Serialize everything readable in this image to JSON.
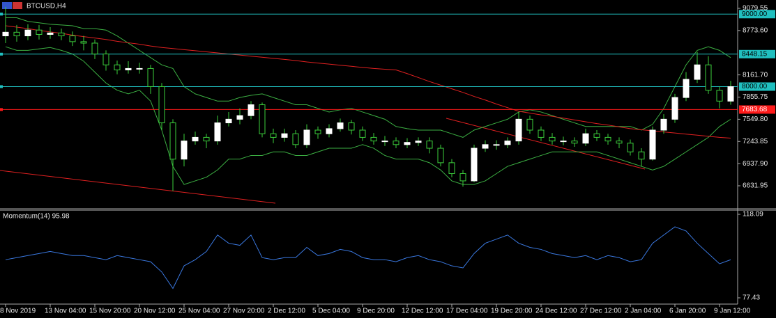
{
  "chart_data": [
    {
      "type": "candlestick",
      "title": "BTCUSD,H4",
      "categories": [
        "8 Nov 2019",
        null,
        null,
        null,
        "13 Nov 04:00",
        null,
        null,
        null,
        "15 Nov 20:00",
        null,
        null,
        null,
        "20 Nov 12:00",
        null,
        null,
        null,
        "25 Nov 04:00",
        null,
        null,
        null,
        "27 Nov 20:00",
        null,
        null,
        null,
        "2 Dec 12:00",
        null,
        null,
        null,
        "5 Dec 04:00",
        null,
        null,
        null,
        "9 Dec 20:00",
        null,
        null,
        null,
        "12 Dec 12:00",
        null,
        null,
        null,
        "17 Dec 04:00",
        null,
        null,
        null,
        "19 Dec 20:00",
        null,
        null,
        null,
        "24 Dec 12:00",
        null,
        null,
        null,
        "27 Dec 12:00",
        null,
        null,
        null,
        "2 Jan 04:00",
        null,
        null,
        null,
        "6 Jan 20:00",
        null,
        null,
        null,
        "9 Jan 12:00",
        null
      ],
      "open": [
        8700,
        8750,
        8700,
        8780,
        8720,
        8740,
        8700,
        8620,
        8600,
        8450,
        8300,
        8230,
        8250,
        8250,
        8000,
        7500,
        7000,
        7250,
        7300,
        7250,
        7500,
        7550,
        7600,
        7750,
        7350,
        7300,
        7350,
        7200,
        7400,
        7350,
        7420,
        7500,
        7400,
        7300,
        7250,
        7250,
        7200,
        7230,
        7250,
        7150,
        6950,
        6800,
        6700,
        7150,
        7200,
        7200,
        7250,
        7550,
        7400,
        7300,
        7250,
        7250,
        7220,
        7350,
        7300,
        7250,
        7220,
        7100,
        7000,
        7400,
        7550,
        7850,
        8100,
        8300,
        7950,
        7800
      ],
      "high": [
        9100,
        8850,
        8860,
        8850,
        8820,
        8800,
        8760,
        8700,
        8650,
        8500,
        8360,
        8350,
        8330,
        8300,
        8050,
        7550,
        7350,
        7380,
        7350,
        7600,
        7650,
        7700,
        7800,
        7780,
        7420,
        7420,
        7400,
        7480,
        7450,
        7480,
        7560,
        7540,
        7450,
        7360,
        7320,
        7300,
        7290,
        7300,
        7300,
        7200,
        7000,
        6850,
        7200,
        7260,
        7260,
        7300,
        7650,
        7600,
        7450,
        7360,
        7310,
        7300,
        7420,
        7400,
        7350,
        7300,
        7270,
        7150,
        7450,
        7620,
        7900,
        8200,
        8480,
        8420,
        8000,
        8080
      ],
      "low": [
        8600,
        8620,
        8640,
        8650,
        8660,
        8640,
        8560,
        8500,
        8380,
        8220,
        8170,
        8180,
        8180,
        7900,
        7400,
        6560,
        6900,
        7200,
        7150,
        7200,
        7450,
        7480,
        7550,
        7300,
        7220,
        7240,
        7150,
        7150,
        7280,
        7300,
        7380,
        7340,
        7250,
        7200,
        7180,
        7150,
        7150,
        7180,
        7080,
        6900,
        6750,
        6620,
        6680,
        7100,
        7130,
        7150,
        7200,
        7350,
        7250,
        7200,
        7190,
        7170,
        7180,
        7250,
        7200,
        7150,
        7050,
        6900,
        6980,
        7350,
        7500,
        7800,
        8050,
        7900,
        7700,
        7750
      ],
      "close": [
        8750,
        8700,
        8780,
        8720,
        8740,
        8700,
        8620,
        8600,
        8450,
        8300,
        8230,
        8250,
        8250,
        8000,
        7500,
        7000,
        7250,
        7300,
        7250,
        7500,
        7550,
        7600,
        7750,
        7350,
        7300,
        7350,
        7200,
        7400,
        7350,
        7420,
        7500,
        7400,
        7300,
        7250,
        7250,
        7200,
        7230,
        7250,
        7150,
        6950,
        6800,
        6700,
        7150,
        7200,
        7200,
        7250,
        7550,
        7400,
        7300,
        7250,
        7250,
        7220,
        7350,
        7300,
        7250,
        7220,
        7100,
        7000,
        7400,
        7550,
        7850,
        8100,
        8300,
        7950,
        7800,
        8000
      ],
      "overlays": [
        {
          "color": "#3cb043",
          "values": [
            8950,
            8950,
            8900,
            8880,
            8860,
            8850,
            8840,
            8800,
            8800,
            8780,
            8700,
            8600,
            8500,
            8400,
            8300,
            8250,
            8000,
            7900,
            7850,
            7800,
            7800,
            7850,
            7880,
            7900,
            7850,
            7800,
            7750,
            7750,
            7700,
            7650,
            7680,
            7700,
            7650,
            7600,
            7550,
            7450,
            7420,
            7400,
            7400,
            7400,
            7350,
            7300,
            7400,
            7450,
            7500,
            7550,
            7650,
            7680,
            7650,
            7600,
            7550,
            7500,
            7450,
            7450,
            7450,
            7450,
            7450,
            7400,
            7480,
            7700,
            8000,
            8300,
            8500,
            8550,
            8500,
            8400
          ]
        },
        {
          "color": "#3cb043",
          "values": [
            8550,
            8500,
            8500,
            8520,
            8540,
            8500,
            8450,
            8350,
            8200,
            8050,
            7950,
            7900,
            7950,
            7800,
            7400,
            6900,
            6650,
            6700,
            6750,
            6850,
            7000,
            7000,
            7050,
            7050,
            7100,
            7100,
            7050,
            7050,
            7100,
            7150,
            7150,
            7150,
            7200,
            7150,
            7050,
            7000,
            7000,
            7000,
            6950,
            6850,
            6700,
            6650,
            6650,
            6700,
            6800,
            6900,
            6950,
            7000,
            7050,
            7100,
            7100,
            7100,
            7100,
            7100,
            7050,
            7000,
            6950,
            6900,
            6850,
            6900,
            7000,
            7100,
            7200,
            7300,
            7450,
            7550
          ]
        },
        {
          "color": "#e02020",
          "values": [
            8840,
            8820,
            8800,
            8775,
            8755,
            8735,
            8710,
            8690,
            8670,
            8650,
            8625,
            8605,
            8585,
            8560,
            8540,
            8525,
            8510,
            8495,
            8480,
            8465,
            8450,
            8435,
            8420,
            8405,
            8390,
            8375,
            8360,
            8340,
            8325,
            8310,
            8295,
            8280,
            8265,
            8250,
            8240,
            8230,
            8180,
            8125,
            8070,
            8020,
            7970,
            7920,
            7865,
            7815,
            7760,
            7710,
            7660,
            7635,
            7610,
            7590,
            7565,
            7540,
            7515,
            7490,
            7470,
            7445,
            7420,
            7405,
            7390,
            7375,
            7360,
            7345,
            7330,
            7315,
            7300,
            7290
          ]
        }
      ],
      "levels": [
        {
          "value": 9000,
          "label": "9000.00",
          "color": "#20c0c0"
        },
        {
          "value": 8448.15,
          "label": "8448.15",
          "color": "#20c0c0"
        },
        {
          "value": 8000,
          "label": "8000.00",
          "color": "#20c0c0"
        },
        {
          "value": 7683.68,
          "label": "7683.68",
          "color": "#ff1a1a"
        }
      ],
      "ylim": [
        6315.3,
        9194.7
      ],
      "yticks": [
        9079.55,
        {
          "value": 8773.6,
          "label": "8773.60"
        },
        {
          "value": 8161.7,
          "label": "8161.70"
        },
        7855.75,
        {
          "value": 7549.8,
          "label": "7549.80"
        },
        7243.85,
        {
          "value": 6937.9,
          "label": "6937.90"
        },
        6631.95
      ]
    },
    {
      "type": "line",
      "title": "Momentum(14) 95.98",
      "series": [
        {
          "color": "#3a78e0",
          "values": [
            96,
            97,
            98,
            99,
            100,
            99,
            98,
            98,
            97,
            96,
            98,
            97,
            96,
            95,
            90,
            82,
            93,
            96,
            100,
            108,
            104,
            103,
            108,
            97,
            96,
            97,
            97,
            102,
            98,
            99,
            101,
            100,
            97,
            96,
            96,
            95,
            97,
            98,
            96,
            95,
            93,
            92,
            99,
            104,
            106,
            108,
            104,
            102,
            101,
            99,
            98,
            97,
            98,
            96,
            98,
            97,
            95,
            96,
            104,
            108,
            112,
            110,
            104,
            99,
            94,
            95.98
          ]
        }
      ],
      "ylim": [
        74.38,
        120.12
      ],
      "yticks": [
        118.09,
        77.43
      ]
    }
  ]
}
